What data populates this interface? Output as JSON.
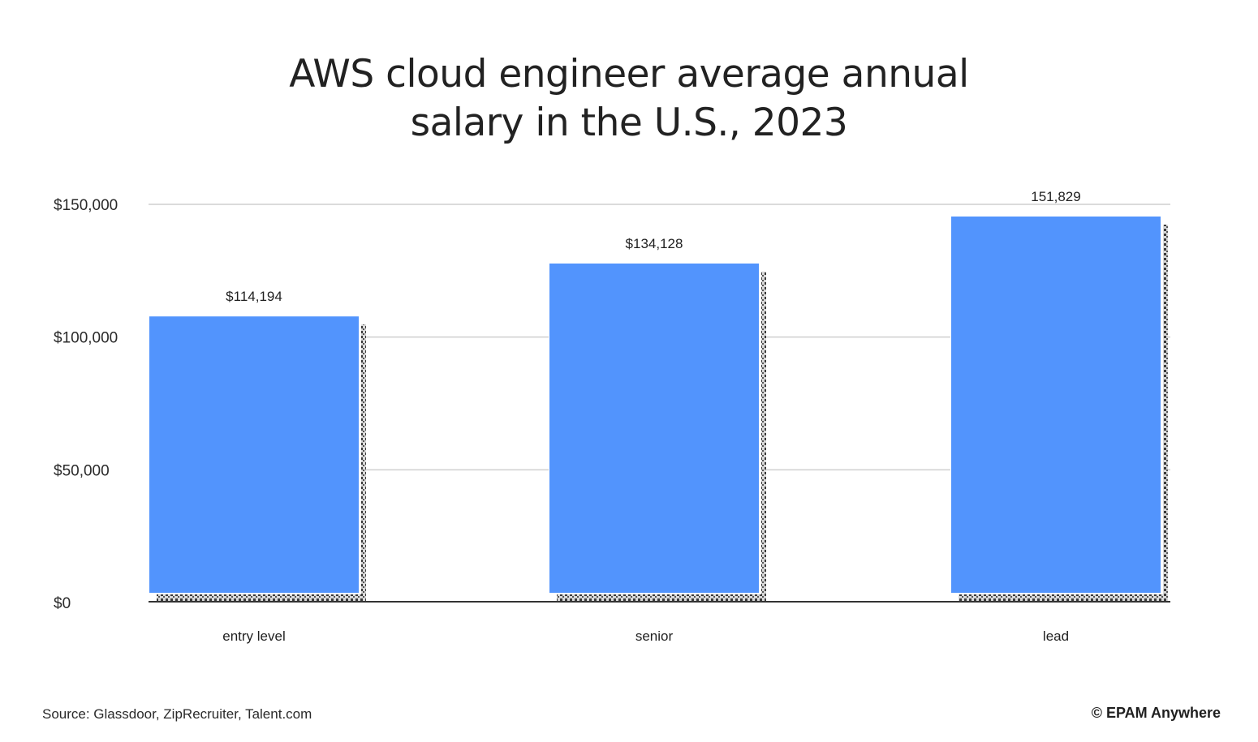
{
  "title_lines": [
    "AWS cloud engineer average annual",
    "salary in the U.S., 2023"
  ],
  "footer": {
    "source": "Source: Glassdoor, ZipRecruiter, Talent.com",
    "brand": "© EPAM Anywhere"
  },
  "colors": {
    "bar": "#5294fd",
    "grid": "#cfcfcf",
    "axis": "#333333",
    "text": "#1f1f1f"
  },
  "chart_data": {
    "type": "bar",
    "title": "AWS cloud engineer average annual salary in the U.S., 2023",
    "categories": [
      "entry level",
      "senior",
      "lead"
    ],
    "values": [
      114194,
      134128,
      151829
    ],
    "data_labels": [
      "$114,194",
      "$134,128",
      "151,829"
    ],
    "yticks": [
      0,
      50000,
      100000,
      150000
    ],
    "ytick_labels": [
      "$0",
      "$50,000",
      "$100,000",
      "$150,000"
    ],
    "ylim": [
      0,
      150000
    ],
    "grid": true,
    "legend": "none"
  }
}
